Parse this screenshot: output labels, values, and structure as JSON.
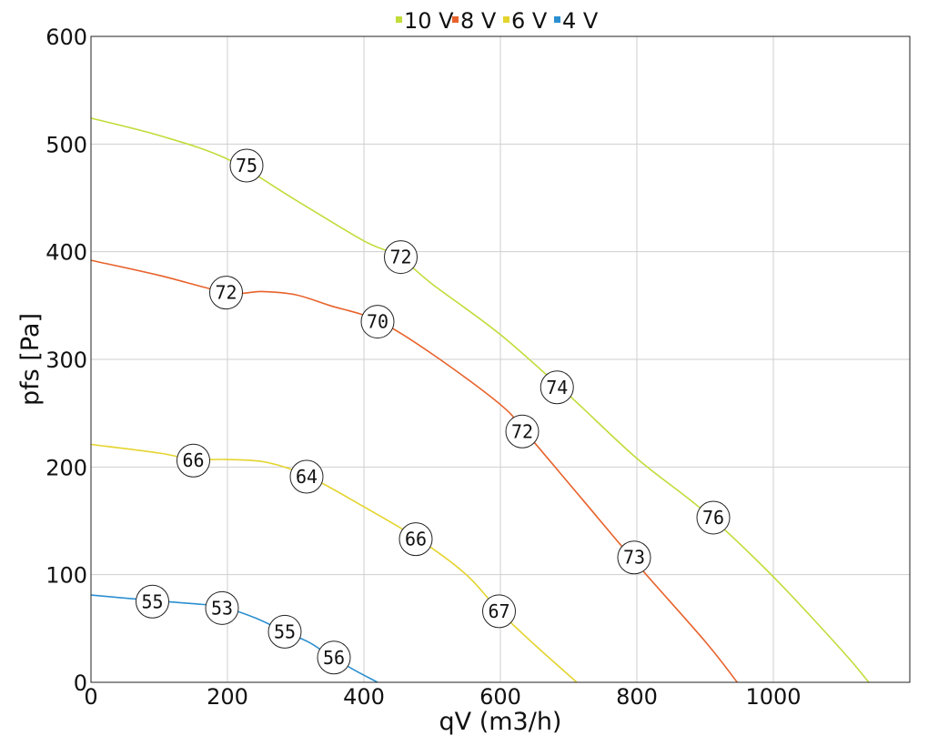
{
  "chart_data": {
    "type": "line",
    "title": "",
    "xlabel": "qV (m3/h)",
    "ylabel": "pfs [Pa]",
    "xlim": [
      0,
      1200
    ],
    "ylim": [
      0,
      600
    ],
    "x_ticks": [
      0,
      200,
      400,
      600,
      800,
      1000
    ],
    "y_ticks": [
      0,
      100,
      200,
      300,
      400,
      500,
      600
    ],
    "grid": true,
    "legend_position": "top-center",
    "series": [
      {
        "name": "10 V",
        "color": "#c2dc3a",
        "points": [
          [
            0,
            524
          ],
          [
            100,
            508
          ],
          [
            200,
            486
          ],
          [
            300,
            448
          ],
          [
            400,
            410
          ],
          [
            450,
            396
          ],
          [
            500,
            370
          ],
          [
            600,
            323
          ],
          [
            700,
            267
          ],
          [
            800,
            208
          ],
          [
            900,
            158
          ],
          [
            1000,
            98
          ],
          [
            1100,
            30
          ],
          [
            1140,
            0
          ]
        ],
        "markers": [
          {
            "x": 228,
            "y": 480,
            "label": "75"
          },
          {
            "x": 454,
            "y": 395,
            "label": "72"
          },
          {
            "x": 683,
            "y": 274,
            "label": "74"
          },
          {
            "x": 912,
            "y": 153,
            "label": "76"
          }
        ]
      },
      {
        "name": "8 V",
        "color": "#e8622b",
        "points": [
          [
            0,
            392
          ],
          [
            100,
            378
          ],
          [
            200,
            362
          ],
          [
            250,
            363
          ],
          [
            300,
            360
          ],
          [
            350,
            350
          ],
          [
            420,
            336
          ],
          [
            500,
            305
          ],
          [
            600,
            258
          ],
          [
            640,
            230
          ],
          [
            720,
            170
          ],
          [
            800,
            110
          ],
          [
            900,
            38
          ],
          [
            947,
            0
          ]
        ],
        "markers": [
          {
            "x": 198,
            "y": 362,
            "label": "72"
          },
          {
            "x": 420,
            "y": 335,
            "label": "70"
          },
          {
            "x": 632,
            "y": 233,
            "label": "72"
          },
          {
            "x": 796,
            "y": 116,
            "label": "73"
          }
        ]
      },
      {
        "name": "6 V",
        "color": "#e4d42e",
        "points": [
          [
            0,
            221
          ],
          [
            100,
            213
          ],
          [
            150,
            207
          ],
          [
            200,
            207
          ],
          [
            260,
            204
          ],
          [
            320,
            191
          ],
          [
            400,
            163
          ],
          [
            480,
            133
          ],
          [
            550,
            100
          ],
          [
            600,
            65
          ],
          [
            650,
            35
          ],
          [
            712,
            0
          ]
        ],
        "markers": [
          {
            "x": 150,
            "y": 206,
            "label": "66"
          },
          {
            "x": 316,
            "y": 191,
            "label": "64"
          },
          {
            "x": 476,
            "y": 133,
            "label": "66"
          },
          {
            "x": 598,
            "y": 66,
            "label": "67"
          }
        ]
      },
      {
        "name": "4 V",
        "color": "#2b8fd0",
        "points": [
          [
            0,
            81
          ],
          [
            90,
            76
          ],
          [
            150,
            73
          ],
          [
            192,
            70
          ],
          [
            240,
            60
          ],
          [
            284,
            47
          ],
          [
            320,
            37
          ],
          [
            354,
            23
          ],
          [
            390,
            10
          ],
          [
            420,
            0
          ]
        ],
        "markers": [
          {
            "x": 90,
            "y": 75,
            "label": "55"
          },
          {
            "x": 192,
            "y": 69,
            "label": "53"
          },
          {
            "x": 284,
            "y": 47,
            "label": "55"
          },
          {
            "x": 356,
            "y": 23,
            "label": "56"
          }
        ]
      }
    ]
  }
}
